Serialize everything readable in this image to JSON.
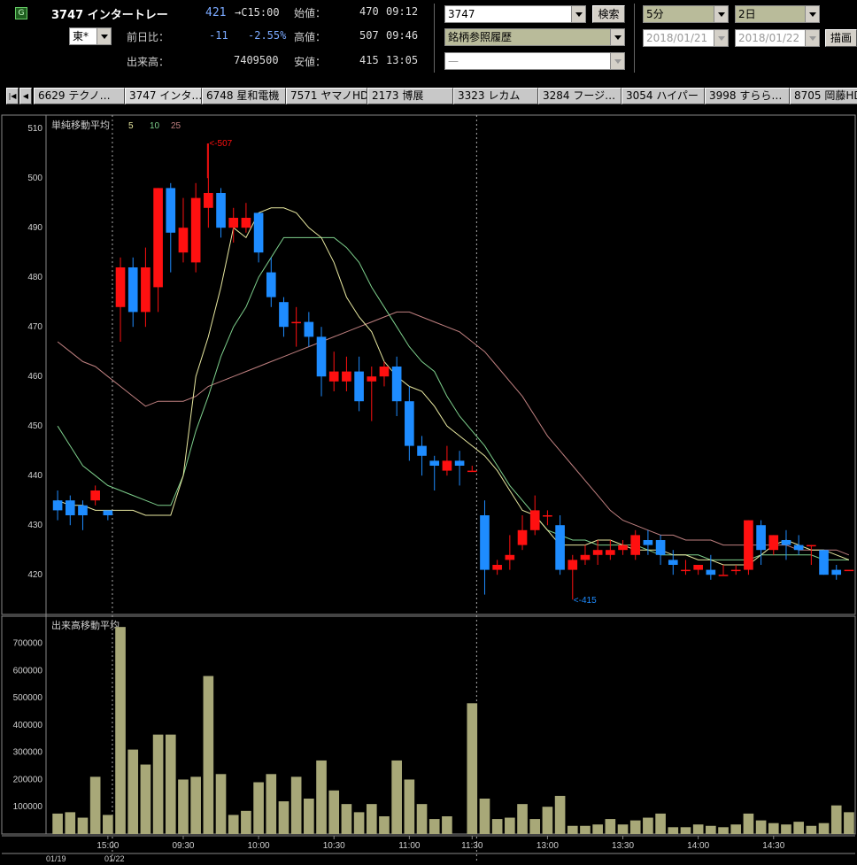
{
  "header": {
    "code_name": "3747 インタートレー",
    "price": "421",
    "price_time": "→C15:00",
    "market": "東*",
    "change_label": "前日比：",
    "change": "-11",
    "change_pct": "-2.55%",
    "volume_label": "出来高：",
    "volume": "7409500",
    "open_label": "始値：",
    "open": "470",
    "open_time": "09:12",
    "high_label": "高値：",
    "high": "507",
    "high_time": "09:46",
    "low_label": "安値：",
    "low": "415",
    "low_time": "13:05",
    "search_value": "3747",
    "search_button": "検索",
    "history_select": "銘柄参照履歴",
    "third_select": "—",
    "interval_select": "5分",
    "span_select": "2日",
    "date_from": "2018/01/21",
    "date_to": "2018/01/22",
    "draw_button": "描画"
  },
  "tabs": [
    "6629 テクノ…",
    "3747 インタ…",
    "6748 星和電機",
    "7571 ヤマノHD",
    "2173 博展",
    "3323 レカム",
    "3284 フージ…",
    "3054 ハイパー",
    "3998 すらら…",
    "8705 岡藤HD"
  ],
  "active_tab": 1,
  "colors": {
    "up": "#ff1010",
    "down": "#1e8cff",
    "ma5": "#e8e8a0",
    "ma10": "#7dcf8c",
    "ma25": "#c08080",
    "volume_bar": "#a8a878",
    "grid": "#888888"
  },
  "chart_data": {
    "type": "candlestick",
    "price_panel": {
      "title": "単純移動平均",
      "ma_periods": [
        "5",
        "10",
        "25"
      ],
      "ylim": [
        412,
        512
      ],
      "yticks": [
        510,
        500,
        490,
        480,
        470,
        460,
        450,
        440,
        430,
        420
      ],
      "high_annotation": "<-507",
      "low_annotation": "<-415",
      "candles": [
        [
          435,
          433,
          437,
          431
        ],
        [
          435,
          432,
          436,
          430
        ],
        [
          434,
          432,
          435,
          429
        ],
        [
          435,
          437,
          438,
          434
        ],
        [
          433,
          432,
          433,
          431
        ],
        [
          474,
          482,
          484,
          467
        ],
        [
          482,
          473,
          484,
          470
        ],
        [
          473,
          482,
          486,
          470
        ],
        [
          478,
          498,
          498,
          473
        ],
        [
          498,
          489,
          499,
          481
        ],
        [
          485,
          490,
          496,
          483
        ],
        [
          483,
          496,
          499,
          481
        ],
        [
          494,
          497,
          507,
          490
        ],
        [
          497,
          490,
          498,
          488
        ],
        [
          490,
          492,
          494,
          487
        ],
        [
          490,
          492,
          495,
          489
        ],
        [
          493,
          485,
          493,
          483
        ],
        [
          481,
          476,
          484,
          474
        ],
        [
          475,
          470,
          476,
          468
        ],
        [
          471,
          471,
          474,
          466
        ],
        [
          471,
          468,
          473,
          466
        ],
        [
          468,
          460,
          470,
          456
        ],
        [
          459,
          461,
          465,
          457
        ],
        [
          459,
          461,
          464,
          457
        ],
        [
          461,
          455,
          464,
          453
        ],
        [
          459,
          460,
          462,
          451
        ],
        [
          460,
          462,
          463,
          458
        ],
        [
          462,
          455,
          464,
          452
        ],
        [
          455,
          446,
          458,
          443
        ],
        [
          446,
          444,
          448,
          440
        ],
        [
          443,
          442,
          444,
          437
        ],
        [
          441,
          443,
          446,
          440
        ],
        [
          443,
          442,
          445,
          438
        ],
        [
          441,
          441,
          442,
          441
        ],
        [
          432,
          421,
          435,
          416
        ],
        [
          421,
          422,
          423,
          420
        ],
        [
          423,
          424,
          428,
          421
        ],
        [
          426,
          429,
          432,
          425
        ],
        [
          429,
          433,
          436,
          428
        ],
        [
          432,
          432,
          433,
          430
        ],
        [
          430,
          421,
          432,
          420
        ],
        [
          421,
          423,
          424,
          415
        ],
        [
          423,
          424,
          426,
          422
        ],
        [
          424,
          425,
          427,
          422
        ],
        [
          424,
          425,
          427,
          423
        ],
        [
          425,
          426,
          427,
          424
        ],
        [
          424,
          428,
          429,
          423
        ],
        [
          427,
          426,
          429,
          424
        ],
        [
          427,
          424,
          428,
          422
        ],
        [
          423,
          422,
          425,
          420
        ],
        [
          421,
          421,
          423,
          420
        ],
        [
          421,
          422,
          422,
          420
        ],
        [
          421,
          420,
          424,
          419
        ],
        [
          420,
          420,
          422,
          420
        ],
        [
          421,
          421,
          422,
          420
        ],
        [
          421,
          431,
          431,
          420
        ],
        [
          430,
          425,
          431,
          422
        ],
        [
          425,
          428,
          428,
          424
        ],
        [
          427,
          426,
          429,
          423
        ],
        [
          426,
          425,
          428,
          424
        ],
        [
          426,
          426,
          426,
          422
        ],
        [
          425,
          420,
          425,
          420
        ],
        [
          421,
          420,
          422,
          419
        ],
        [
          421,
          421,
          421,
          421
        ]
      ],
      "ma5": [
        435,
        434,
        434,
        433,
        433,
        433,
        433,
        432,
        432,
        432,
        440,
        460,
        468,
        478,
        490,
        488,
        493,
        494,
        494,
        493,
        490,
        488,
        483,
        476,
        472,
        469,
        463,
        460,
        458,
        457,
        454,
        450,
        448,
        446,
        444,
        441,
        437,
        433,
        432,
        429,
        426,
        426,
        426,
        427,
        427,
        426,
        425,
        425,
        425,
        424,
        424,
        423,
        423,
        422,
        422,
        422,
        424,
        426,
        427,
        426,
        425,
        425,
        424,
        423
      ],
      "ma10": [
        450,
        446,
        442,
        440,
        438,
        437,
        436,
        435,
        434,
        434,
        440,
        449,
        456,
        464,
        470,
        474,
        480,
        484,
        488,
        488,
        488,
        488,
        488,
        486,
        483,
        478,
        474,
        470,
        466,
        463,
        461,
        456,
        452,
        449,
        446,
        442,
        438,
        435,
        432,
        429,
        428,
        427,
        427,
        426,
        426,
        426,
        426,
        425,
        424,
        424,
        424,
        424,
        423,
        423,
        423,
        423,
        424,
        424,
        424,
        424,
        424,
        423,
        423,
        423
      ],
      "ma25": [
        467,
        465,
        463,
        462,
        460,
        458,
        456,
        454,
        455,
        455,
        455,
        456,
        458,
        459,
        460,
        461,
        462,
        463,
        464,
        465,
        466,
        467,
        468,
        469,
        470,
        471,
        472,
        473,
        473,
        472,
        471,
        470,
        469,
        467,
        465,
        462,
        459,
        456,
        452,
        448,
        445,
        442,
        439,
        436,
        433,
        431,
        430,
        429,
        428,
        428,
        427,
        427,
        427,
        426,
        426,
        426,
        426,
        426,
        426,
        425,
        425,
        425,
        425,
        424
      ]
    },
    "volume_panel": {
      "title": "出来高移動平均",
      "ylim": [
        0,
        780000
      ],
      "yticks": [
        700000,
        600000,
        500000,
        400000,
        300000,
        200000,
        100000
      ],
      "values": [
        75000,
        80000,
        60000,
        210000,
        70000,
        760000,
        310000,
        255000,
        365000,
        365000,
        200000,
        210000,
        580000,
        220000,
        70000,
        85000,
        190000,
        220000,
        120000,
        210000,
        130000,
        270000,
        160000,
        110000,
        80000,
        110000,
        65000,
        270000,
        200000,
        110000,
        55000,
        65000,
        0,
        480000,
        130000,
        55000,
        60000,
        110000,
        55000,
        100000,
        140000,
        30000,
        30000,
        35000,
        55000,
        35000,
        50000,
        60000,
        75000,
        25000,
        25000,
        35000,
        30000,
        25000,
        35000,
        75000,
        50000,
        40000,
        35000,
        45000,
        30000,
        40000,
        105000,
        80000
      ]
    },
    "x_ticks": [
      "15:00",
      "09:30",
      "10:00",
      "10:30",
      "11:00",
      "11:30",
      "13:00",
      "13:30",
      "14:00",
      "14:30"
    ],
    "date_labels": [
      "01/19",
      "01/22"
    ]
  }
}
